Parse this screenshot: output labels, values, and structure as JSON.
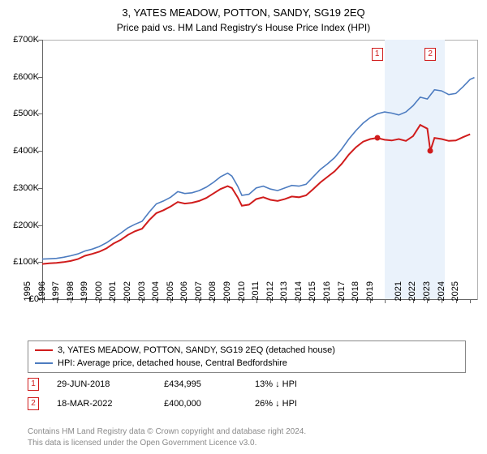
{
  "title": "3, YATES MEADOW, POTTON, SANDY, SG19 2EQ",
  "subtitle": "Price paid vs. HM Land Registry's House Price Index (HPI)",
  "chart": {
    "type": "line",
    "background_color": "#ffffff",
    "axis_color": "#666666",
    "xlim": [
      1995,
      2025.5
    ],
    "ylim": [
      0,
      700000
    ],
    "ytick_step": 100000,
    "yticks": [
      "£0",
      "£100K",
      "£200K",
      "£300K",
      "£400K",
      "£500K",
      "£600K",
      "£700K"
    ],
    "xticks": [
      1995,
      1996,
      1997,
      1998,
      1999,
      2000,
      2001,
      2002,
      2003,
      2004,
      2005,
      2006,
      2007,
      2008,
      2009,
      2010,
      2011,
      2012,
      2013,
      2014,
      2015,
      2016,
      2017,
      2018,
      2019,
      2021,
      2022,
      2023,
      2024,
      2025
    ],
    "band": {
      "start": 2019,
      "end": 2023.2,
      "color": "#eaf2fb"
    },
    "series": [
      {
        "name": "property",
        "label": "3, YATES MEADOW, POTTON, SANDY, SG19 2EQ (detached house)",
        "color": "#d01c1c",
        "line_width": 2,
        "data": [
          [
            1995,
            95000
          ],
          [
            1995.5,
            97000
          ],
          [
            1996,
            98000
          ],
          [
            1996.5,
            100000
          ],
          [
            1997,
            103000
          ],
          [
            1997.5,
            108000
          ],
          [
            1998,
            117000
          ],
          [
            1998.5,
            122000
          ],
          [
            1999,
            128000
          ],
          [
            1999.5,
            137000
          ],
          [
            2000,
            150000
          ],
          [
            2000.5,
            160000
          ],
          [
            2001,
            173000
          ],
          [
            2001.5,
            183000
          ],
          [
            2002,
            190000
          ],
          [
            2002.5,
            213000
          ],
          [
            2003,
            232000
          ],
          [
            2003.5,
            240000
          ],
          [
            2004,
            250000
          ],
          [
            2004.5,
            262000
          ],
          [
            2005,
            258000
          ],
          [
            2005.5,
            260000
          ],
          [
            2006,
            265000
          ],
          [
            2006.5,
            273000
          ],
          [
            2007,
            285000
          ],
          [
            2007.5,
            297000
          ],
          [
            2008,
            305000
          ],
          [
            2008.3,
            300000
          ],
          [
            2008.7,
            275000
          ],
          [
            2009,
            252000
          ],
          [
            2009.5,
            255000
          ],
          [
            2010,
            270000
          ],
          [
            2010.5,
            275000
          ],
          [
            2011,
            268000
          ],
          [
            2011.5,
            265000
          ],
          [
            2012,
            270000
          ],
          [
            2012.5,
            277000
          ],
          [
            2013,
            275000
          ],
          [
            2013.5,
            280000
          ],
          [
            2014,
            297000
          ],
          [
            2014.5,
            315000
          ],
          [
            2015,
            330000
          ],
          [
            2015.5,
            345000
          ],
          [
            2016,
            365000
          ],
          [
            2016.5,
            390000
          ],
          [
            2017,
            410000
          ],
          [
            2017.5,
            425000
          ],
          [
            2018,
            432000
          ],
          [
            2018.48,
            434995
          ],
          [
            2019,
            430000
          ],
          [
            2019.5,
            428000
          ],
          [
            2020,
            432000
          ],
          [
            2020.5,
            427000
          ],
          [
            2021,
            440000
          ],
          [
            2021.5,
            470000
          ],
          [
            2022,
            460000
          ],
          [
            2022.21,
            400000
          ],
          [
            2022.5,
            435000
          ],
          [
            2023,
            432000
          ],
          [
            2023.5,
            427000
          ],
          [
            2024,
            428000
          ],
          [
            2024.5,
            437000
          ],
          [
            2025,
            445000
          ]
        ]
      },
      {
        "name": "hpi",
        "label": "HPI: Average price, detached house, Central Bedfordshire",
        "color": "#4d7cc0",
        "line_width": 1.6,
        "data": [
          [
            1995,
            108000
          ],
          [
            1995.5,
            109000
          ],
          [
            1996,
            110000
          ],
          [
            1996.5,
            113000
          ],
          [
            1997,
            117000
          ],
          [
            1997.5,
            122000
          ],
          [
            1998,
            130000
          ],
          [
            1998.5,
            135000
          ],
          [
            1999,
            142000
          ],
          [
            1999.5,
            152000
          ],
          [
            2000,
            165000
          ],
          [
            2000.5,
            178000
          ],
          [
            2001,
            192000
          ],
          [
            2001.5,
            202000
          ],
          [
            2002,
            210000
          ],
          [
            2002.5,
            235000
          ],
          [
            2003,
            257000
          ],
          [
            2003.5,
            265000
          ],
          [
            2004,
            275000
          ],
          [
            2004.5,
            290000
          ],
          [
            2005,
            285000
          ],
          [
            2005.5,
            287000
          ],
          [
            2006,
            293000
          ],
          [
            2006.5,
            302000
          ],
          [
            2007,
            315000
          ],
          [
            2007.5,
            330000
          ],
          [
            2008,
            340000
          ],
          [
            2008.3,
            332000
          ],
          [
            2008.7,
            305000
          ],
          [
            2009,
            280000
          ],
          [
            2009.5,
            283000
          ],
          [
            2010,
            300000
          ],
          [
            2010.5,
            305000
          ],
          [
            2011,
            297000
          ],
          [
            2011.5,
            293000
          ],
          [
            2012,
            300000
          ],
          [
            2012.5,
            307000
          ],
          [
            2013,
            305000
          ],
          [
            2013.5,
            310000
          ],
          [
            2014,
            330000
          ],
          [
            2014.5,
            350000
          ],
          [
            2015,
            365000
          ],
          [
            2015.5,
            382000
          ],
          [
            2016,
            405000
          ],
          [
            2016.5,
            432000
          ],
          [
            2017,
            455000
          ],
          [
            2017.5,
            475000
          ],
          [
            2018,
            490000
          ],
          [
            2018.5,
            500000
          ],
          [
            2019,
            505000
          ],
          [
            2019.5,
            502000
          ],
          [
            2020,
            497000
          ],
          [
            2020.5,
            505000
          ],
          [
            2021,
            522000
          ],
          [
            2021.5,
            545000
          ],
          [
            2022,
            540000
          ],
          [
            2022.5,
            565000
          ],
          [
            2023,
            562000
          ],
          [
            2023.5,
            552000
          ],
          [
            2024,
            555000
          ],
          [
            2024.5,
            573000
          ],
          [
            2025,
            593000
          ],
          [
            2025.3,
            598000
          ]
        ]
      }
    ],
    "sale_markers": [
      {
        "n": "1",
        "year": 2018.48,
        "price": 434995,
        "color": "#d01c1c"
      },
      {
        "n": "2",
        "year": 2022.21,
        "price": 400000,
        "color": "#d01c1c"
      }
    ]
  },
  "legend": {
    "items": [
      {
        "color": "#d01c1c",
        "label": "3, YATES MEADOW, POTTON, SANDY, SG19 2EQ (detached house)"
      },
      {
        "color": "#4d7cc0",
        "label": "HPI: Average price, detached house, Central Bedfordshire"
      }
    ]
  },
  "sales": [
    {
      "n": "1",
      "color": "#d01c1c",
      "date": "29-JUN-2018",
      "price": "£434,995",
      "diff": "13% ↓ HPI"
    },
    {
      "n": "2",
      "color": "#d01c1c",
      "date": "18-MAR-2022",
      "price": "£400,000",
      "diff": "26% ↓ HPI"
    }
  ],
  "footer": {
    "line1": "Contains HM Land Registry data © Crown copyright and database right 2024.",
    "line2": "This data is licensed under the Open Government Licence v3.0."
  }
}
